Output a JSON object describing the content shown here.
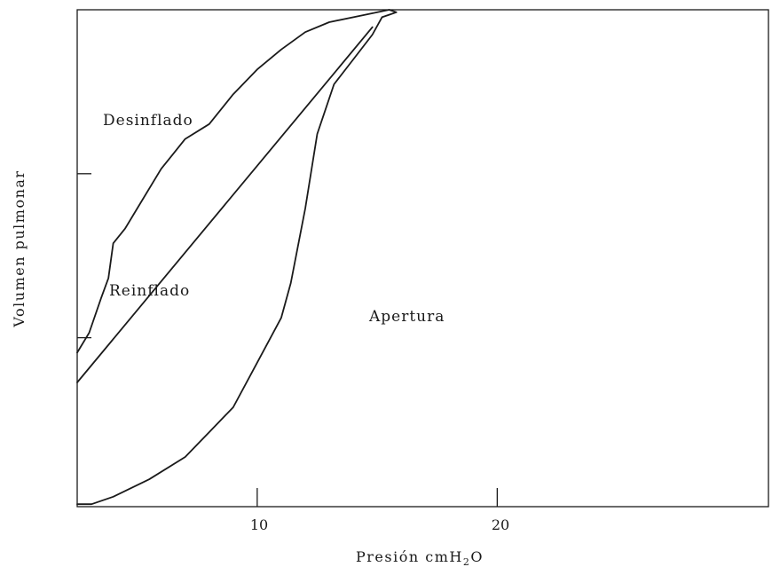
{
  "chart_data": {
    "type": "line",
    "title": "",
    "xlabel_main": "Presión  cmH",
    "xlabel_sub": "2",
    "xlabel_end": "O",
    "ylabel": "Volumen  pulmonar",
    "x_ticks": [
      {
        "value": 10,
        "label": "10"
      },
      {
        "value": 20,
        "label": "20"
      }
    ],
    "y_ticks": [
      {
        "value": 0.34,
        "label": ""
      },
      {
        "value": 0.67,
        "label": ""
      }
    ],
    "xlim": [
      2.5,
      31.3
    ],
    "ylim": [
      0.0,
      1.0
    ],
    "grid": false,
    "annotations": [
      {
        "text": "Desinflado",
        "x": 3.5,
        "y": 0.78
      },
      {
        "text": "Reinflado",
        "x": 3.8,
        "y": 0.42
      },
      {
        "text": "Apertura",
        "x": 14.8,
        "y": 0.37
      }
    ],
    "series": [
      {
        "name": "",
        "x": [
          2.5,
          3.1,
          4.0,
          5.5,
          7.0,
          8.0,
          9.0,
          10.0,
          11.0,
          11.4,
          12.0,
          12.5,
          13.2,
          14.0,
          14.8,
          15.2,
          15.5,
          15.8,
          15.5,
          14.5,
          13.0,
          12.0,
          11.0,
          10.0,
          9.0,
          8.0,
          7.0,
          6.5,
          6.0,
          5.0,
          4.5,
          4.0,
          3.8,
          3.5,
          3.0,
          2.5
        ],
        "y": [
          0.005,
          0.005,
          0.02,
          0.055,
          0.1,
          0.15,
          0.2,
          0.29,
          0.38,
          0.45,
          0.6,
          0.75,
          0.85,
          0.9,
          0.95,
          0.985,
          0.99,
          0.995,
          1.0,
          0.99,
          0.975,
          0.955,
          0.92,
          0.88,
          0.83,
          0.77,
          0.74,
          0.71,
          0.68,
          0.6,
          0.56,
          0.53,
          0.46,
          0.42,
          0.35,
          0.31
        ]
      },
      {
        "name": "",
        "x": [
          2.5,
          14.8
        ],
        "y": [
          0.25,
          0.965
        ]
      }
    ]
  }
}
